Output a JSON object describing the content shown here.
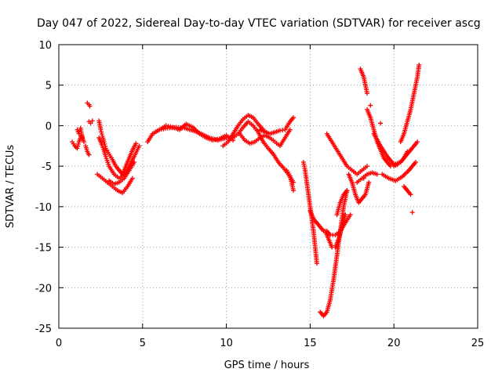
{
  "chart_data": {
    "type": "scatter",
    "title": "Day 047 of 2022, Sidereal Day-to-day VTEC variation (SDTVAR) for receiver ascg",
    "xlabel": "GPS time / hours",
    "ylabel": "SDTVAR / TECUs",
    "xlim": [
      0,
      25
    ],
    "ylim": [
      -25,
      10
    ],
    "xticks": [
      0,
      5,
      10,
      15,
      20,
      25
    ],
    "yticks": [
      -25,
      -20,
      -15,
      -10,
      -5,
      0,
      5,
      10
    ],
    "grid": true,
    "marker": "+",
    "color": "#ff0000",
    "series": [
      {
        "name": "t01",
        "x": [
          0.8,
          0.95,
          1.1,
          1.2,
          1.35,
          1.5
        ],
        "y": [
          -2.0,
          -2.5,
          -2.8,
          -2.0,
          -1.2,
          -2.0
        ]
      },
      {
        "name": "t02",
        "x": [
          1.1,
          1.2,
          1.3,
          1.4
        ],
        "y": [
          -0.5,
          -1.0,
          -0.3,
          -1.5
        ]
      },
      {
        "name": "t03",
        "x": [
          1.7,
          1.8,
          1.85
        ],
        "y": [
          2.8,
          2.6,
          2.4
        ]
      },
      {
        "name": "t04",
        "x": [
          1.6,
          1.7,
          1.8
        ],
        "y": [
          -2.5,
          -3.2,
          -3.6
        ]
      },
      {
        "name": "t05",
        "x": [
          1.8,
          1.9,
          2.0
        ],
        "y": [
          0.5,
          0.3,
          0.6
        ]
      },
      {
        "name": "t06",
        "x": [
          2.4,
          2.5,
          2.6,
          2.7,
          2.8,
          3.0,
          3.2,
          3.4,
          3.6,
          3.8,
          4.0,
          4.2,
          4.4,
          4.6
        ],
        "y": [
          0.6,
          -0.5,
          -1.3,
          -2.0,
          -2.8,
          -3.5,
          -4.2,
          -5.0,
          -5.5,
          -6.0,
          -5.0,
          -4.0,
          -3.0,
          -2.2
        ]
      },
      {
        "name": "t07",
        "x": [
          2.4,
          2.6,
          2.8,
          3.0,
          3.3,
          3.6,
          3.9,
          4.2,
          4.5,
          4.8
        ],
        "y": [
          -1.5,
          -2.5,
          -3.8,
          -5.0,
          -6.0,
          -6.5,
          -6.0,
          -5.0,
          -3.8,
          -2.5
        ]
      },
      {
        "name": "t08",
        "x": [
          2.3,
          2.6,
          2.9,
          3.2,
          3.5,
          3.8,
          4.1,
          4.4
        ],
        "y": [
          -6.0,
          -6.5,
          -7.0,
          -7.5,
          -8.0,
          -8.3,
          -7.5,
          -6.5
        ]
      },
      {
        "name": "t09",
        "x": [
          3.0,
          3.3,
          3.6,
          3.9,
          4.2,
          4.5
        ],
        "y": [
          -6.8,
          -7.2,
          -7.0,
          -6.5,
          -5.5,
          -4.5
        ]
      },
      {
        "name": "t10",
        "x": [
          5.3,
          5.6,
          6.0,
          6.5,
          7.0,
          7.5,
          8.0,
          8.5,
          9.0,
          9.5,
          10.0
        ],
        "y": [
          -2.0,
          -1.0,
          -0.5,
          -0.3,
          -0.2,
          -0.3,
          -0.6,
          -1.0,
          -1.5,
          -1.8,
          -1.5
        ]
      },
      {
        "name": "t11",
        "x": [
          5.6,
          6.0,
          6.4,
          6.8,
          7.2,
          7.6,
          8.0,
          8.4,
          8.8,
          9.2,
          9.6,
          10.0,
          10.4
        ],
        "y": [
          -1.0,
          -0.5,
          0.0,
          -0.2,
          -0.5,
          0.2,
          -0.2,
          -1.0,
          -1.5,
          -1.8,
          -1.6,
          -1.2,
          -1.8
        ]
      },
      {
        "name": "t12",
        "x": [
          9.8,
          10.1,
          10.4,
          10.7,
          11.0,
          11.3,
          11.6,
          11.9,
          12.2,
          12.5
        ],
        "y": [
          -2.5,
          -2.0,
          -1.0,
          0.0,
          0.8,
          1.3,
          1.0,
          0.2,
          -0.5,
          -1.0
        ]
      },
      {
        "name": "t13",
        "x": [
          10.4,
          10.7,
          11.0,
          11.3,
          11.6,
          11.9,
          12.2
        ],
        "y": [
          -1.5,
          -1.0,
          -0.2,
          0.5,
          0.0,
          -0.8,
          -2.0
        ]
      },
      {
        "name": "t14",
        "x": [
          10.8,
          11.1,
          11.4,
          11.7,
          12.0,
          12.3,
          12.6,
          12.9,
          13.2,
          13.5,
          13.8
        ],
        "y": [
          -1.0,
          -1.8,
          -2.2,
          -2.0,
          -1.5,
          -1.2,
          -1.5,
          -2.0,
          -2.5,
          -1.5,
          -0.5
        ]
      },
      {
        "name": "t15",
        "x": [
          12.0,
          12.3,
          12.6,
          12.9,
          13.2,
          13.5,
          13.8,
          14.0
        ],
        "y": [
          -0.5,
          -0.8,
          -1.0,
          -0.8,
          -0.6,
          -0.5,
          0.5,
          1.0
        ]
      },
      {
        "name": "t16",
        "x": [
          12.2,
          12.5,
          12.8,
          13.1,
          13.4,
          13.7,
          14.0
        ],
        "y": [
          -2.0,
          -2.8,
          -3.5,
          -4.5,
          -5.2,
          -6.0,
          -7.0
        ]
      },
      {
        "name": "t17",
        "x": [
          13.6,
          13.8,
          14.0
        ],
        "y": [
          -5.5,
          -6.2,
          -8.0
        ]
      },
      {
        "name": "t18",
        "x": [
          14.6,
          14.7,
          14.8,
          14.9,
          15.0,
          15.1,
          15.2,
          15.3,
          15.4
        ],
        "y": [
          -4.5,
          -5.5,
          -7.0,
          -8.5,
          -10.0,
          -11.5,
          -13.0,
          -15.0,
          -17.0
        ]
      },
      {
        "name": "t19",
        "x": [
          15.0,
          15.2,
          15.4,
          15.6,
          15.8,
          16.0,
          16.2,
          16.5,
          16.8,
          17.1,
          17.4
        ],
        "y": [
          -10.5,
          -11.5,
          -12.0,
          -12.5,
          -13.0,
          -13.0,
          -13.5,
          -13.5,
          -13.0,
          -12.0,
          -11.0
        ]
      },
      {
        "name": "t20",
        "x": [
          15.6,
          15.8,
          16.0,
          16.2,
          16.4,
          16.6,
          16.8,
          17.0,
          17.2
        ],
        "y": [
          -23.0,
          -23.5,
          -23.0,
          -21.5,
          -19.0,
          -16.0,
          -13.0,
          -10.0,
          -8.0
        ]
      },
      {
        "name": "t21",
        "x": [
          15.9,
          16.1,
          16.3,
          16.5,
          16.7,
          16.9,
          17.1
        ],
        "y": [
          -13.0,
          -14.0,
          -15.0,
          -15.0,
          -14.0,
          -12.5,
          -11.0
        ]
      },
      {
        "name": "t22",
        "x": [
          16.6,
          16.8,
          17.0,
          17.2
        ],
        "y": [
          -11.0,
          -9.5,
          -8.5,
          -8.0
        ]
      },
      {
        "name": "t23",
        "x": [
          17.3,
          17.5,
          17.7,
          17.9,
          18.1,
          18.3,
          18.5
        ],
        "y": [
          -6.0,
          -7.0,
          -8.5,
          -9.5,
          -9.0,
          -8.5,
          -7.0
        ]
      },
      {
        "name": "t24",
        "x": [
          16.0,
          16.3,
          16.6,
          16.9,
          17.2,
          17.5,
          17.8,
          18.1,
          18.4
        ],
        "y": [
          -1.0,
          -2.0,
          -3.0,
          -4.0,
          -5.0,
          -5.5,
          -6.0,
          -5.5,
          -5.0
        ]
      },
      {
        "name": "t25",
        "x": [
          17.8,
          18.1,
          18.4,
          18.7,
          19.0
        ],
        "y": [
          -7.0,
          -6.5,
          -6.0,
          -5.8,
          -6.0
        ]
      },
      {
        "name": "t26",
        "x": [
          18.0,
          18.2,
          18.4
        ],
        "y": [
          7.0,
          6.0,
          4.0
        ]
      },
      {
        "name": "t27",
        "x": [
          18.4,
          18.6,
          18.8,
          19.0,
          19.2,
          19.4,
          19.6,
          19.8,
          20.0,
          20.2,
          20.4,
          20.6,
          20.8
        ],
        "y": [
          2.0,
          1.0,
          -0.5,
          -2.0,
          -3.0,
          -4.0,
          -4.5,
          -5.0,
          -5.0,
          -4.8,
          -4.5,
          -4.0,
          -3.2
        ]
      },
      {
        "name": "t28",
        "x": [
          18.8,
          19.2,
          19.6,
          20.0,
          20.4,
          20.8,
          21.2,
          21.4
        ],
        "y": [
          -1.0,
          -2.5,
          -3.8,
          -4.8,
          -4.5,
          -3.5,
          -2.5,
          -2.0
        ]
      },
      {
        "name": "t29",
        "x": [
          19.3,
          19.7,
          20.1,
          20.5,
          20.9,
          21.3
        ],
        "y": [
          -6.0,
          -6.5,
          -6.8,
          -6.3,
          -5.5,
          -4.5
        ]
      },
      {
        "name": "t30",
        "x": [
          20.4,
          20.6,
          20.8,
          21.0,
          21.2,
          21.4,
          21.5
        ],
        "y": [
          -2.0,
          -1.0,
          0.5,
          2.0,
          4.0,
          6.0,
          7.5
        ]
      },
      {
        "name": "t31",
        "x": [
          20.6,
          20.8,
          21.0
        ],
        "y": [
          -7.5,
          -8.0,
          -8.5
        ]
      },
      {
        "name": "t32",
        "x": [
          17.0,
          18.2,
          18.6,
          19.2,
          21.1
        ],
        "y": [
          -12.0,
          -6.5,
          2.5,
          0.3,
          -10.7
        ]
      }
    ]
  }
}
